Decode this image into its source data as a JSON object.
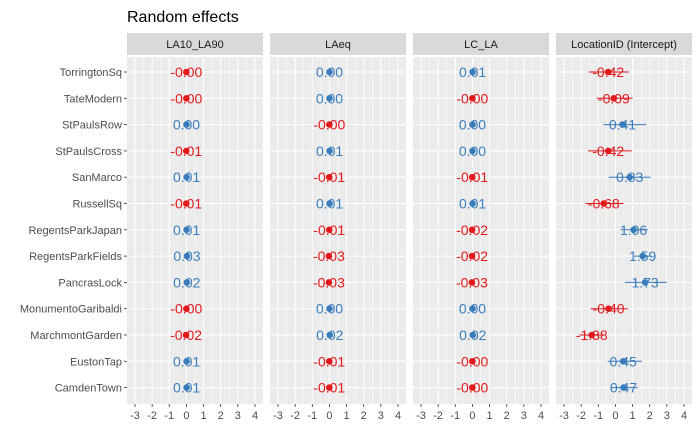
{
  "chart_data": {
    "type": "dot-errorbar",
    "title": "Random effects",
    "xlim": [
      -3,
      4
    ],
    "x_ticks": [
      -3,
      -2,
      -1,
      0,
      1,
      2,
      3,
      4
    ],
    "grid": true,
    "colors": {
      "positive": "#3a7dbd",
      "negative": "#e3191c"
    },
    "categories": [
      "TorringtonSq",
      "TateModern",
      "StPaulsRow",
      "StPaulsCross",
      "SanMarco",
      "RussellSq",
      "RegentsParkJapan",
      "RegentsParkFields",
      "PancrasLock",
      "MonumentoGaribaldi",
      "MarchmontGarden",
      "EustonTap",
      "CamdenTown"
    ],
    "panels": [
      {
        "name": "LA10_LA90",
        "values": [
          -0.004,
          -0.003,
          0.002,
          -0.01,
          0.01,
          -0.01,
          0.01,
          0.03,
          0.02,
          -0.004,
          -0.02,
          0.01,
          0.01
        ],
        "labels": [
          "-0.00",
          "-0.00",
          "0.00",
          "-0.01",
          "0.01",
          "-0.01",
          "0.01",
          "0.03",
          "0.02",
          "-0.00",
          "-0.02",
          "0.01",
          "0.01"
        ],
        "lower": [
          -0.004,
          -0.003,
          0.002,
          -0.01,
          0.01,
          -0.01,
          0.01,
          0.03,
          0.02,
          -0.004,
          -0.02,
          0.01,
          0.01
        ],
        "upper": [
          -0.004,
          -0.003,
          0.002,
          -0.01,
          0.01,
          -0.01,
          0.01,
          0.03,
          0.02,
          -0.004,
          -0.02,
          0.01,
          0.01
        ]
      },
      {
        "name": "LAeq",
        "values": [
          0.003,
          0.003,
          -0.004,
          0.01,
          -0.01,
          0.01,
          -0.01,
          -0.03,
          -0.03,
          0.003,
          0.02,
          -0.01,
          -0.01
        ],
        "labels": [
          "0.00",
          "0.00",
          "-0.00",
          "0.01",
          "-0.01",
          "0.01",
          "-0.01",
          "-0.03",
          "-0.03",
          "0.00",
          "0.02",
          "-0.01",
          "-0.01"
        ],
        "lower": [
          0.003,
          0.003,
          -0.004,
          0.01,
          -0.01,
          0.01,
          -0.01,
          -0.03,
          -0.03,
          0.003,
          0.02,
          -0.01,
          -0.01
        ],
        "upper": [
          0.003,
          0.003,
          -0.004,
          0.01,
          -0.01,
          0.01,
          -0.01,
          -0.03,
          -0.03,
          0.003,
          0.02,
          -0.01,
          -0.01
        ]
      },
      {
        "name": "LC_LA",
        "values": [
          0.01,
          -0.004,
          0.003,
          0.003,
          -0.01,
          0.01,
          -0.02,
          -0.02,
          -0.03,
          0.003,
          0.02,
          -0.004,
          -0.004
        ],
        "labels": [
          "0.01",
          "-0.00",
          "0.00",
          "0.00",
          "-0.01",
          "0.01",
          "-0.02",
          "-0.02",
          "-0.03",
          "0.00",
          "0.02",
          "-0.00",
          "-0.00"
        ],
        "lower": [
          0.01,
          -0.004,
          0.003,
          0.003,
          -0.01,
          0.01,
          -0.02,
          -0.02,
          -0.03,
          0.003,
          0.02,
          -0.004,
          -0.004
        ],
        "upper": [
          0.01,
          -0.004,
          0.003,
          0.003,
          -0.01,
          0.01,
          -0.02,
          -0.02,
          -0.03,
          0.003,
          0.02,
          -0.004,
          -0.004
        ]
      },
      {
        "name": "LocationID (Intercept)",
        "values": [
          -0.42,
          -0.09,
          0.41,
          -0.42,
          0.83,
          -0.68,
          1.06,
          1.59,
          1.73,
          -0.4,
          -1.38,
          0.45,
          0.47
        ],
        "labels": [
          "-0.42",
          "-0.09",
          "0.41",
          "-0.42",
          "0.83",
          "-0.68",
          "1.06",
          "1.59",
          "1.73",
          "-0.40",
          "-1.38",
          "0.45",
          "0.47"
        ],
        "lower": [
          -1.55,
          -1.1,
          -0.7,
          -1.6,
          -0.4,
          -1.75,
          0.3,
          1.1,
          0.55,
          -1.45,
          -2.1,
          -0.45,
          -0.3
        ],
        "upper": [
          0.78,
          1.0,
          1.8,
          0.95,
          2.05,
          0.48,
          1.9,
          2.1,
          3.0,
          0.72,
          -0.75,
          1.55,
          1.3
        ]
      }
    ]
  }
}
